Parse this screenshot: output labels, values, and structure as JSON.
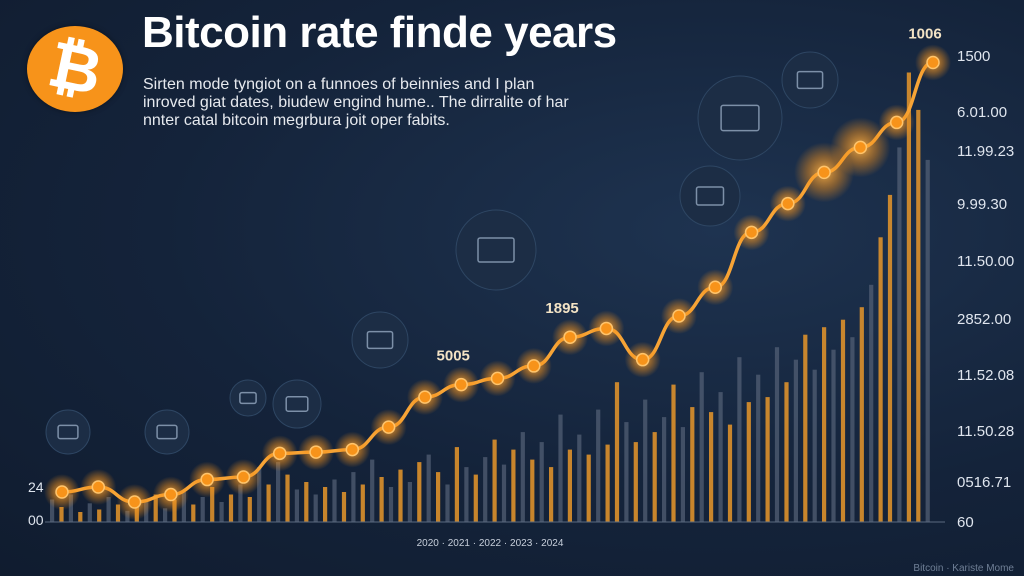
{
  "title": "Bitcoin rate finde years",
  "subtitle": "Sirten mode tyngiot on a funnoes of beinnies and I plan inroved giat dates, biudew engind hume.. The dirralite of har nnter catal bitcoin megrbura joit oper fabits.",
  "logo_symbol": "₿",
  "left_axis_labels": [
    "24",
    "00"
  ],
  "right_axis_labels": [
    "1500",
    "6.01.00",
    "11.99.23",
    "9.99.30",
    "11.50.00",
    "2852.00",
    "11.52.08",
    "11.50.28",
    "0516.71",
    "60"
  ],
  "watermark": "Bitcoin · Kariste Mome",
  "colors": {
    "background": "#14233a",
    "line": "#f7a436",
    "marker": "#f7931a",
    "bar_orange": "#e8962a",
    "bar_gray": "#556377",
    "logo": "#f7931a"
  },
  "chart_data": {
    "type": "line",
    "title": "Bitcoin rate finde years",
    "series": [
      {
        "values": [
          24,
          28,
          16,
          22,
          34,
          36,
          55,
          56,
          58,
          76,
          100,
          110,
          115,
          125,
          148,
          155,
          130,
          165,
          188,
          232,
          255,
          280,
          300,
          320,
          368
        ]
      }
    ],
    "data_labels": [
      {
        "point": 11,
        "text": "5005"
      },
      {
        "point": 14,
        "text": "1895"
      },
      {
        "point": 24,
        "text": "1006"
      }
    ],
    "highlighted_points": [
      0,
      1,
      2,
      3,
      4,
      5,
      6,
      7,
      8,
      9,
      10,
      11,
      12,
      13,
      14,
      15,
      16,
      17,
      18,
      19,
      20,
      21,
      22,
      23,
      24
    ],
    "bars": [
      {
        "value": 18,
        "color": "gray"
      },
      {
        "value": 12,
        "color": "orange"
      },
      {
        "value": 22,
        "color": "gray"
      },
      {
        "value": 8,
        "color": "orange"
      },
      {
        "value": 15,
        "color": "gray"
      },
      {
        "value": 10,
        "color": "orange"
      },
      {
        "value": 20,
        "color": "gray"
      },
      {
        "value": 14,
        "color": "orange"
      },
      {
        "value": 9,
        "color": "gray"
      },
      {
        "value": 12,
        "color": "orange"
      },
      {
        "value": 16,
        "color": "gray"
      },
      {
        "value": 22,
        "color": "orange"
      },
      {
        "value": 11,
        "color": "gray"
      },
      {
        "value": 18,
        "color": "orange"
      },
      {
        "value": 24,
        "color": "gray"
      },
      {
        "value": 14,
        "color": "orange"
      },
      {
        "value": 20,
        "color": "gray"
      },
      {
        "value": 28,
        "color": "orange"
      },
      {
        "value": 16,
        "color": "gray"
      },
      {
        "value": 22,
        "color": "orange"
      },
      {
        "value": 30,
        "color": "gray"
      },
      {
        "value": 20,
        "color": "orange"
      },
      {
        "value": 44,
        "color": "gray"
      },
      {
        "value": 30,
        "color": "orange"
      },
      {
        "value": 48,
        "color": "gray"
      },
      {
        "value": 38,
        "color": "orange"
      },
      {
        "value": 26,
        "color": "gray"
      },
      {
        "value": 32,
        "color": "orange"
      },
      {
        "value": 22,
        "color": "gray"
      },
      {
        "value": 28,
        "color": "orange"
      },
      {
        "value": 34,
        "color": "gray"
      },
      {
        "value": 24,
        "color": "orange"
      },
      {
        "value": 40,
        "color": "gray"
      },
      {
        "value": 30,
        "color": "orange"
      },
      {
        "value": 50,
        "color": "gray"
      },
      {
        "value": 36,
        "color": "orange"
      },
      {
        "value": 28,
        "color": "gray"
      },
      {
        "value": 42,
        "color": "orange"
      },
      {
        "value": 32,
        "color": "gray"
      },
      {
        "value": 48,
        "color": "orange"
      },
      {
        "value": 54,
        "color": "gray"
      },
      {
        "value": 40,
        "color": "orange"
      },
      {
        "value": 30,
        "color": "gray"
      },
      {
        "value": 60,
        "color": "orange"
      },
      {
        "value": 44,
        "color": "gray"
      },
      {
        "value": 38,
        "color": "orange"
      },
      {
        "value": 52,
        "color": "gray"
      },
      {
        "value": 66,
        "color": "orange"
      },
      {
        "value": 46,
        "color": "gray"
      },
      {
        "value": 58,
        "color": "orange"
      },
      {
        "value": 72,
        "color": "gray"
      },
      {
        "value": 50,
        "color": "orange"
      },
      {
        "value": 64,
        "color": "gray"
      },
      {
        "value": 44,
        "color": "orange"
      },
      {
        "value": 86,
        "color": "gray"
      },
      {
        "value": 58,
        "color": "orange"
      },
      {
        "value": 70,
        "color": "gray"
      },
      {
        "value": 54,
        "color": "orange"
      },
      {
        "value": 90,
        "color": "gray"
      },
      {
        "value": 62,
        "color": "orange"
      },
      {
        "value": 112,
        "color": "orange"
      },
      {
        "value": 80,
        "color": "gray"
      },
      {
        "value": 64,
        "color": "orange"
      },
      {
        "value": 98,
        "color": "gray"
      },
      {
        "value": 72,
        "color": "orange"
      },
      {
        "value": 84,
        "color": "gray"
      },
      {
        "value": 110,
        "color": "orange"
      },
      {
        "value": 76,
        "color": "gray"
      },
      {
        "value": 92,
        "color": "orange"
      },
      {
        "value": 120,
        "color": "gray"
      },
      {
        "value": 88,
        "color": "orange"
      },
      {
        "value": 104,
        "color": "gray"
      },
      {
        "value": 78,
        "color": "orange"
      },
      {
        "value": 132,
        "color": "gray"
      },
      {
        "value": 96,
        "color": "orange"
      },
      {
        "value": 118,
        "color": "gray"
      },
      {
        "value": 100,
        "color": "orange"
      },
      {
        "value": 140,
        "color": "gray"
      },
      {
        "value": 112,
        "color": "orange"
      },
      {
        "value": 130,
        "color": "gray"
      },
      {
        "value": 150,
        "color": "orange"
      },
      {
        "value": 122,
        "color": "gray"
      },
      {
        "value": 156,
        "color": "orange"
      },
      {
        "value": 138,
        "color": "gray"
      },
      {
        "value": 162,
        "color": "orange"
      },
      {
        "value": 148,
        "color": "gray"
      },
      {
        "value": 172,
        "color": "orange"
      },
      {
        "value": 190,
        "color": "gray"
      },
      {
        "value": 228,
        "color": "orange"
      },
      {
        "value": 262,
        "color": "orange"
      },
      {
        "value": 300,
        "color": "gray"
      },
      {
        "value": 360,
        "color": "orange"
      },
      {
        "value": 330,
        "color": "orange"
      },
      {
        "value": 290,
        "color": "gray"
      }
    ]
  },
  "bottom_axis_label": "2020 · 2021 · 2022 · 2023 · 2024"
}
